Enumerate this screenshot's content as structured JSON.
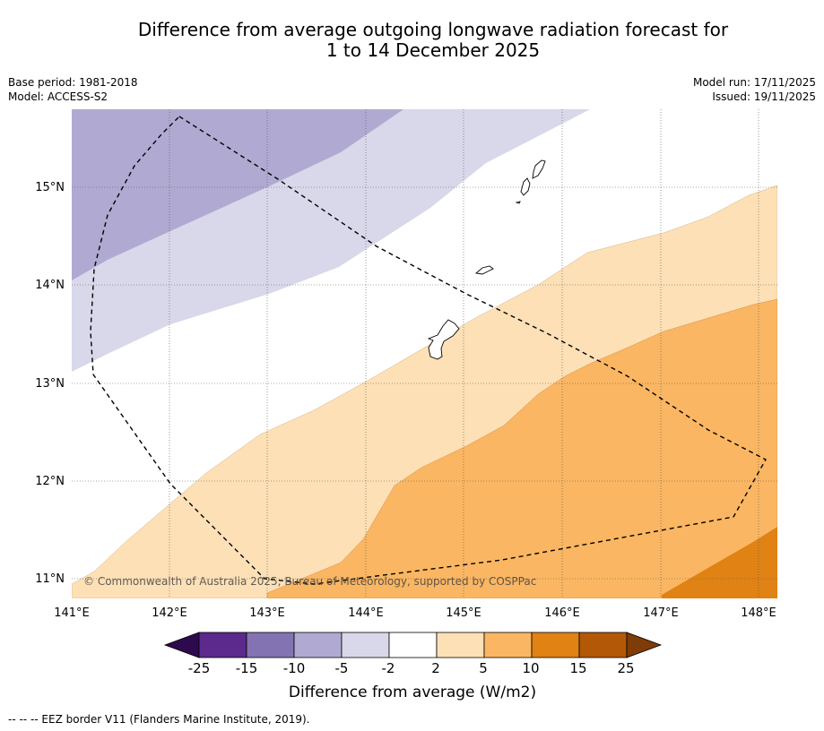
{
  "title": {
    "line1": "Difference from average outgoing longwave radiation forecast for",
    "line2": "1 to 14 December 2025"
  },
  "meta_left": {
    "base_period": "Base period: 1981-2018",
    "model": "Model: ACCESS-S2"
  },
  "meta_right": {
    "model_run": "Model run: 17/11/2025",
    "issued": "Issued: 19/11/2025"
  },
  "map": {
    "lon_labels": [
      "141°E",
      "142°E",
      "143°E",
      "144°E",
      "145°E",
      "146°E",
      "147°E",
      "148°E"
    ],
    "lat_labels": [
      "15°N",
      "14°N",
      "13°N",
      "12°N",
      "11°N"
    ],
    "copyright": "© Commonwealth of Australia 2025, Bureau of Meteorology, supported by COSPPac"
  },
  "legend": {
    "labels": [
      "-25",
      "-15",
      "-10",
      "-5",
      "-2",
      "2",
      "5",
      "10",
      "15",
      "25"
    ],
    "colors": [
      "#2d0a4e",
      "#5b2a8c",
      "#8473b3",
      "#b0a9d1",
      "#d8d8ea",
      "#ffffff",
      "#fde0b6",
      "#fab662",
      "#e08214",
      "#b35806",
      "#7f3b08"
    ],
    "title": "Difference from average (W/m2)"
  },
  "footnote": "--  --  -- EEZ border V11 (Flanders Marine Institute, 2019)."
}
